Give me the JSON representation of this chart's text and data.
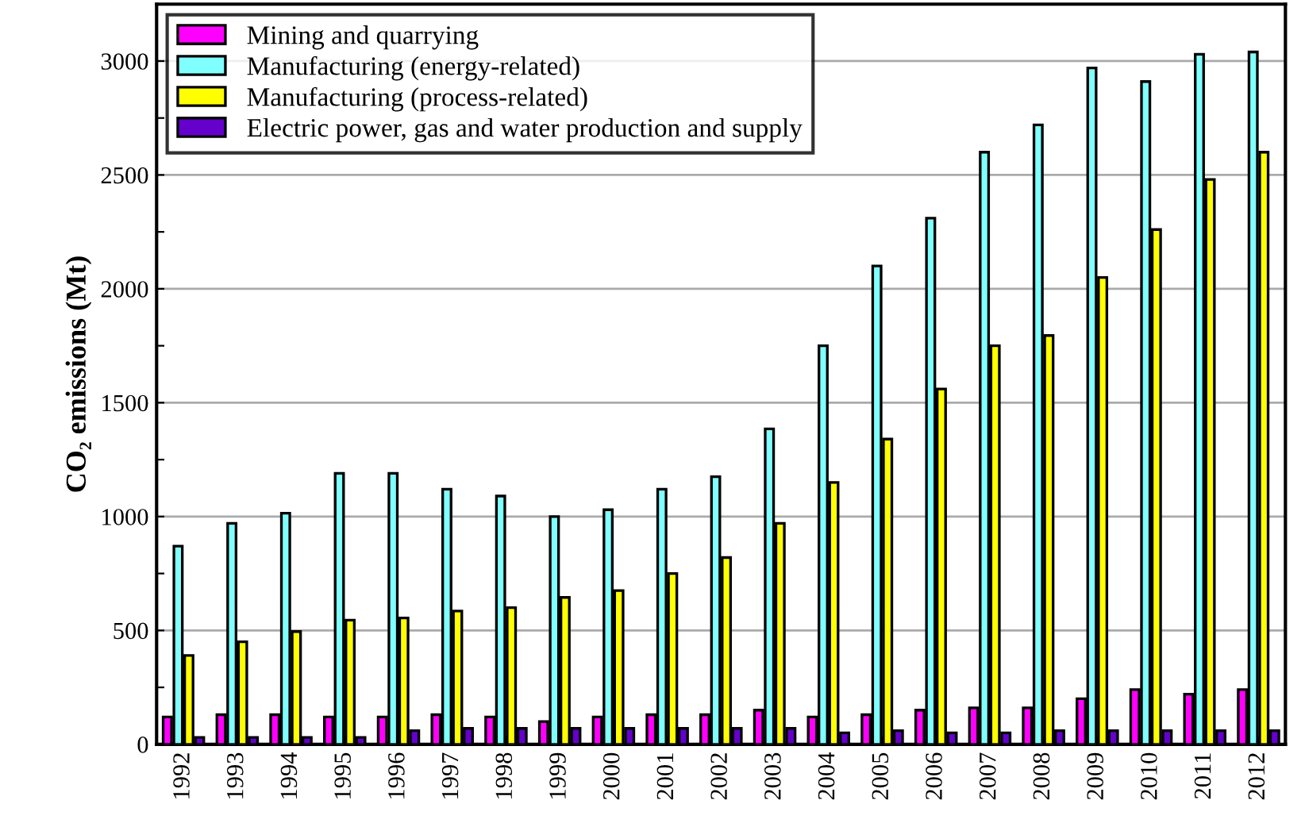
{
  "chart_data": {
    "type": "bar",
    "ylabel": "CO₂ emissions (Mt)",
    "categories": [
      "1992",
      "1993",
      "1994",
      "1995",
      "1996",
      "1997",
      "1998",
      "1999",
      "2000",
      "2001",
      "2002",
      "2003",
      "2004",
      "2005",
      "2006",
      "2007",
      "2008",
      "2009",
      "2010",
      "2011",
      "2012"
    ],
    "series": [
      {
        "name": "Mining and quarrying",
        "color": "#ff00ff",
        "values": [
          120,
          130,
          130,
          120,
          120,
          130,
          120,
          100,
          120,
          130,
          130,
          150,
          120,
          130,
          150,
          160,
          160,
          200,
          240,
          220,
          240
        ]
      },
      {
        "name": "Manufacturing (energy-related)",
        "color": "#80ffff",
        "values": [
          870,
          970,
          1015,
          1190,
          1190,
          1120,
          1090,
          1000,
          1030,
          1120,
          1175,
          1385,
          1750,
          2100,
          2310,
          2600,
          2720,
          2970,
          2910,
          3030,
          3040
        ]
      },
      {
        "name": "Manufacturing (process-related)",
        "color": "#ffff00",
        "values": [
          390,
          450,
          495,
          545,
          555,
          585,
          600,
          645,
          675,
          750,
          820,
          970,
          1150,
          1340,
          1560,
          1750,
          1795,
          2050,
          2260,
          2480,
          2600
        ]
      },
      {
        "name": "Electric power, gas and water production and supply",
        "color": "#6600cc",
        "values": [
          30,
          30,
          30,
          30,
          60,
          70,
          70,
          70,
          70,
          70,
          70,
          70,
          50,
          60,
          50,
          50,
          60,
          60,
          60,
          60,
          60
        ]
      }
    ],
    "ylim": [
      0,
      3250
    ],
    "yticks": [
      0,
      {
        "value": 250,
        "label": null
      },
      500,
      {
        "value": 750,
        "label": null
      },
      1000,
      {
        "value": 1250,
        "label": null
      },
      1500,
      {
        "value": 1750,
        "label": null
      },
      2000,
      {
        "value": 2250,
        "label": null
      },
      2500,
      {
        "value": 2750,
        "label": null
      },
      3000
    ],
    "grid": "y",
    "legend": "top left"
  }
}
